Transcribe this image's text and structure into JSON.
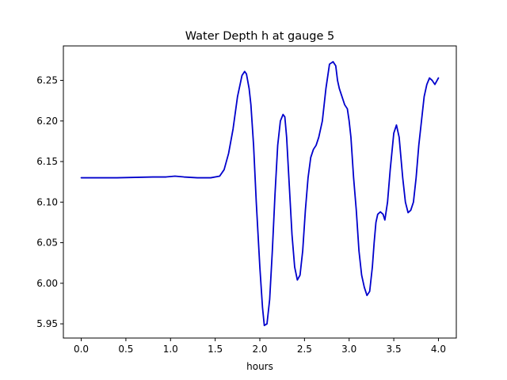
{
  "chart_data": {
    "type": "line",
    "title": "Water Depth h at gauge 5",
    "xlabel": "hours",
    "ylabel": "",
    "xlim": [
      -0.2,
      4.2
    ],
    "ylim": [
      5.9325,
      6.2925
    ],
    "xticks": [
      0.0,
      0.5,
      1.0,
      1.5,
      2.0,
      2.5,
      3.0,
      3.5,
      4.0
    ],
    "xtick_labels": [
      "0.0",
      "0.5",
      "1.0",
      "1.5",
      "2.0",
      "2.5",
      "3.0",
      "3.5",
      "4.0"
    ],
    "yticks": [
      5.95,
      6.0,
      6.05,
      6.1,
      6.15,
      6.2,
      6.25
    ],
    "ytick_labels": [
      "5.95",
      "6.00",
      "6.05",
      "6.10",
      "6.15",
      "6.20",
      "6.25"
    ],
    "grid": false,
    "legend": "none",
    "series": [
      {
        "color": "#0000cc",
        "x": [
          0.0,
          0.2,
          0.4,
          0.6,
          0.8,
          0.95,
          1.05,
          1.15,
          1.3,
          1.45,
          1.55,
          1.6,
          1.65,
          1.7,
          1.75,
          1.8,
          1.83,
          1.85,
          1.88,
          1.9,
          1.93,
          1.96,
          2.0,
          2.03,
          2.05,
          2.08,
          2.11,
          2.14,
          2.17,
          2.2,
          2.23,
          2.26,
          2.28,
          2.3,
          2.33,
          2.36,
          2.39,
          2.42,
          2.45,
          2.48,
          2.51,
          2.54,
          2.57,
          2.6,
          2.63,
          2.66,
          2.7,
          2.74,
          2.78,
          2.82,
          2.85,
          2.87,
          2.89,
          2.92,
          2.95,
          2.98,
          3.0,
          3.02,
          3.05,
          3.08,
          3.11,
          3.14,
          3.17,
          3.2,
          3.23,
          3.26,
          3.28,
          3.3,
          3.32,
          3.35,
          3.38,
          3.4,
          3.43,
          3.46,
          3.5,
          3.53,
          3.56,
          3.6,
          3.63,
          3.66,
          3.69,
          3.72,
          3.75,
          3.78,
          3.81,
          3.84,
          3.87,
          3.9,
          3.93,
          3.96,
          4.0
        ],
        "y": [
          6.13,
          6.13,
          6.13,
          6.1305,
          6.131,
          6.131,
          6.132,
          6.131,
          6.13,
          6.13,
          6.132,
          6.14,
          6.16,
          6.19,
          6.23,
          6.256,
          6.261,
          6.258,
          6.24,
          6.22,
          6.17,
          6.1,
          6.02,
          5.97,
          5.948,
          5.95,
          5.98,
          6.04,
          6.11,
          6.17,
          6.2,
          6.208,
          6.205,
          6.18,
          6.12,
          6.06,
          6.02,
          6.004,
          6.01,
          6.04,
          6.09,
          6.13,
          6.155,
          6.165,
          6.17,
          6.18,
          6.2,
          6.24,
          6.27,
          6.273,
          6.268,
          6.25,
          6.24,
          6.23,
          6.22,
          6.215,
          6.2,
          6.18,
          6.13,
          6.09,
          6.04,
          6.01,
          5.995,
          5.985,
          5.99,
          6.02,
          6.05,
          6.075,
          6.085,
          6.088,
          6.085,
          6.078,
          6.1,
          6.14,
          6.185,
          6.195,
          6.18,
          6.13,
          6.1,
          6.087,
          6.09,
          6.1,
          6.13,
          6.17,
          6.2,
          6.23,
          6.245,
          6.253,
          6.25,
          6.245,
          6.253
        ]
      }
    ]
  }
}
